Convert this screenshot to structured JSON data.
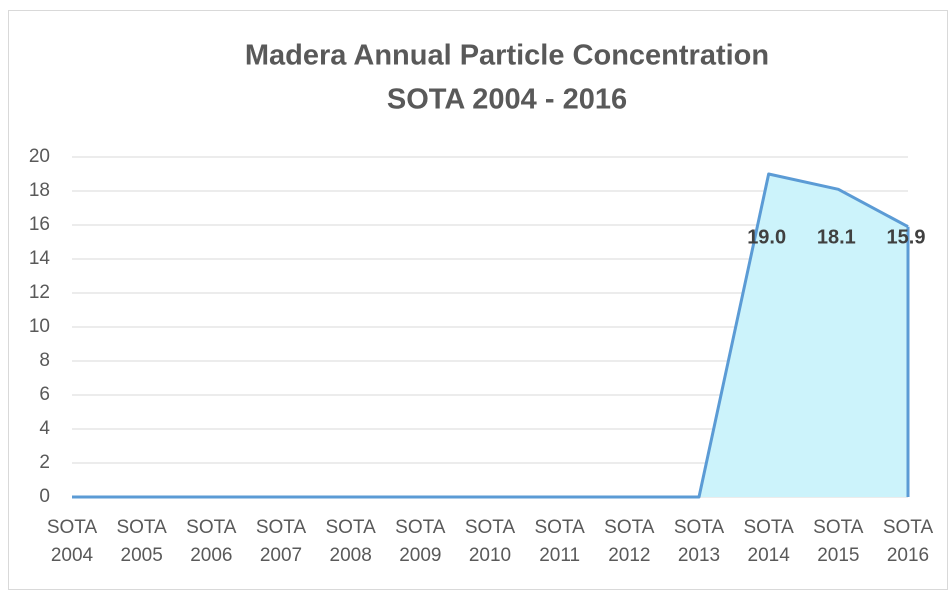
{
  "chart_data": {
    "type": "area",
    "title": [
      "Madera Annual Particle Concentration",
      "SOTA 2004 - 2016"
    ],
    "categories": [
      "SOTA 2004",
      "SOTA 2005",
      "SOTA 2006",
      "SOTA 2007",
      "SOTA 2008",
      "SOTA 2009",
      "SOTA 2010",
      "SOTA 2011",
      "SOTA 2012",
      "SOTA 2013",
      "SOTA 2014",
      "SOTA 2015",
      "SOTA 2016"
    ],
    "values": [
      0,
      0,
      0,
      0,
      0,
      0,
      0,
      0,
      0,
      0,
      19,
      18.1,
      15.9
    ],
    "value_labels": [
      null,
      null,
      null,
      null,
      null,
      null,
      null,
      null,
      null,
      null,
      "19.0",
      "18.1",
      "15.9"
    ],
    "color": "#5b9bd5",
    "fill": "#ccf3fb",
    "ylim": [
      0,
      20
    ],
    "yticks": [
      0,
      2,
      4,
      6,
      8,
      10,
      12,
      14,
      16,
      18,
      20
    ],
    "grid": true
  }
}
